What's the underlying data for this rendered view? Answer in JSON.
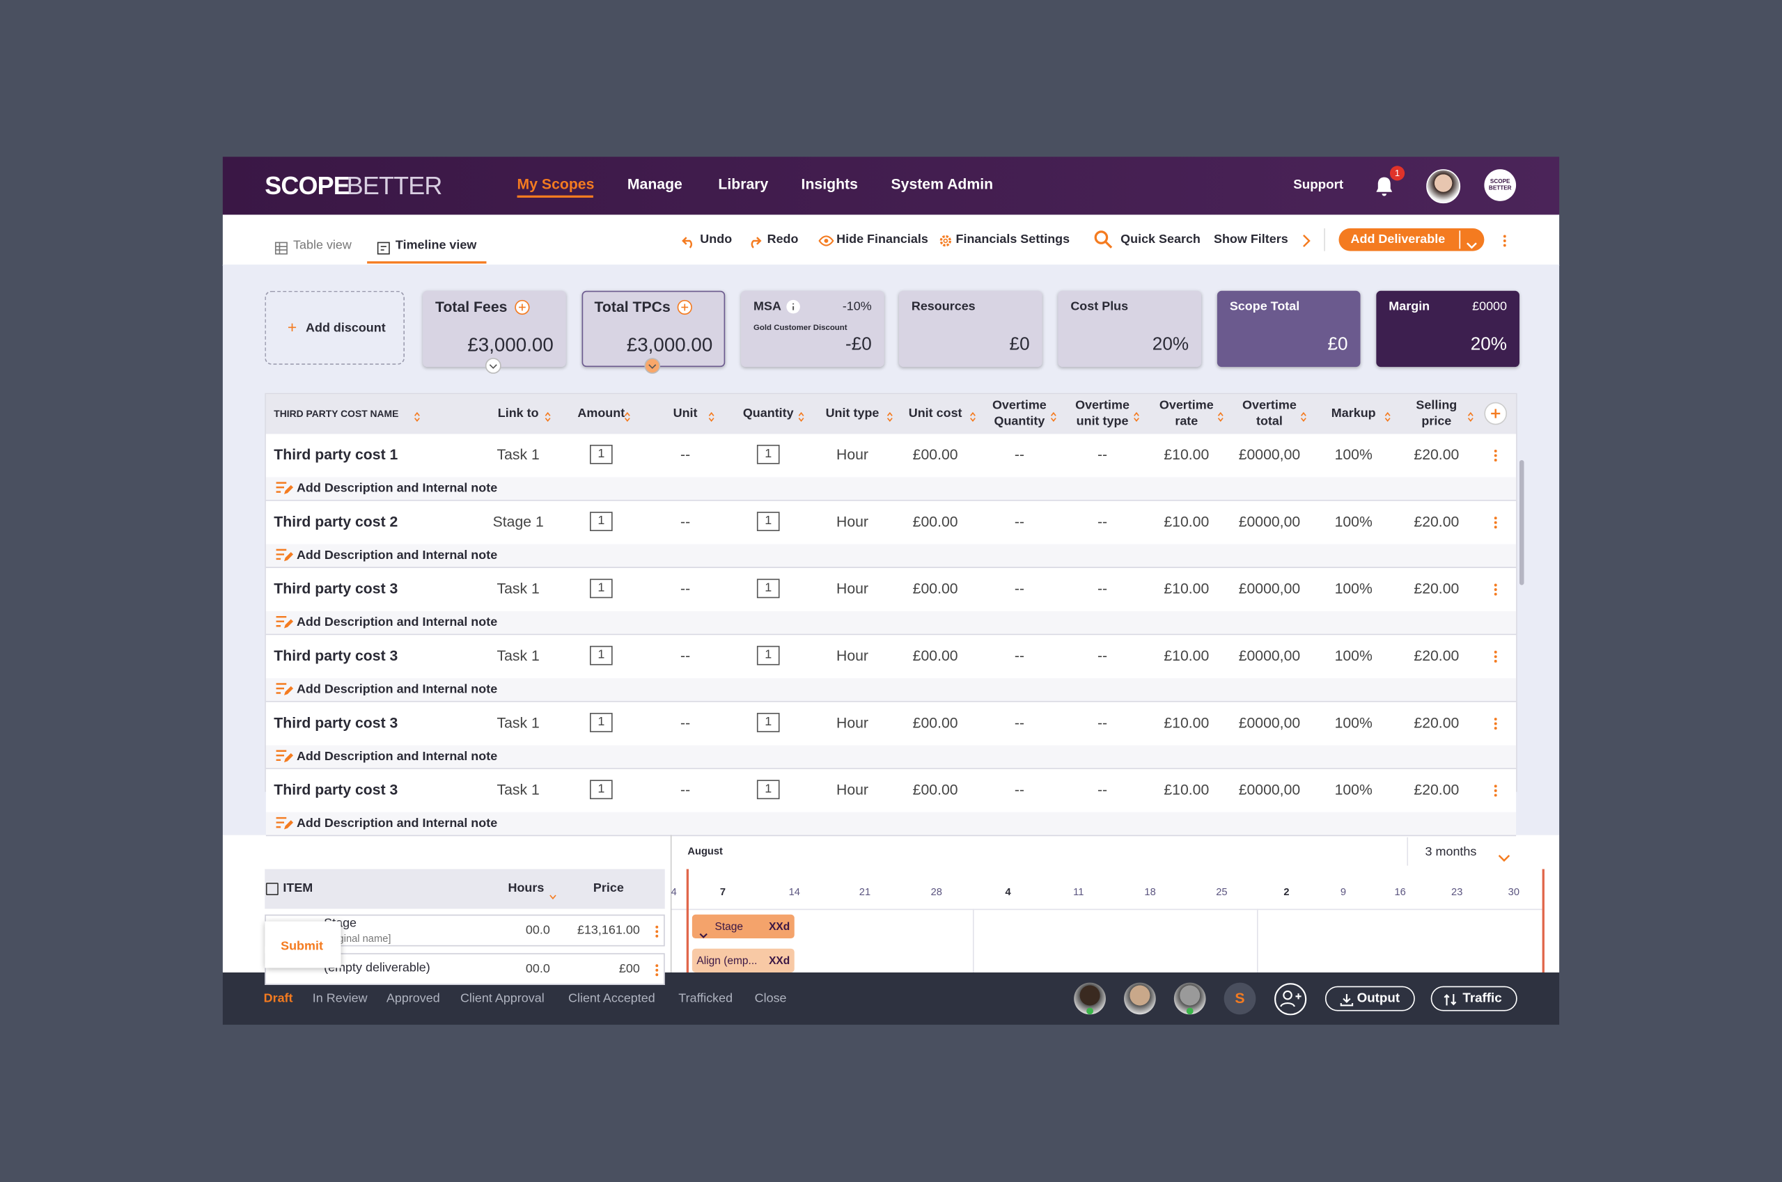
{
  "brand": {
    "a": "SCOPE",
    "b": "BETTER"
  },
  "nav": [
    "My Scopes",
    "Manage",
    "Library",
    "Insights",
    "System Admin"
  ],
  "support": "Support",
  "notifications": "1",
  "logo_small": "SCOPE BETTER",
  "views": [
    "Table view",
    "Timeline view"
  ],
  "toolbar": [
    "Undo",
    "Redo",
    "Hide Financials",
    "Financials Settings",
    "Quick Search",
    "Show Filters"
  ],
  "add_button": "Add Deliverable",
  "add_discount": "Add discount",
  "cards": [
    {
      "title": "Total Fees",
      "value": "£3,000.00"
    },
    {
      "title": "Total TPCs",
      "value": "£3,000.00"
    },
    {
      "title": "MSA",
      "extra": "-10%",
      "sub": "Gold Customer Discount",
      "value": "-£0"
    },
    {
      "title": "Resources",
      "value": "£0"
    },
    {
      "title": "Cost Plus",
      "value": "20%"
    },
    {
      "title": "Scope Total",
      "value": "£0"
    },
    {
      "title": "Margin",
      "extra": "£0000",
      "value": "20%"
    }
  ],
  "table": {
    "headers": [
      "THIRD PARTY COST NAME",
      "Link to",
      "Amount",
      "Unit",
      "Quantity",
      "Unit type",
      "Unit cost",
      "Overtime Quantity",
      "Overtime unit type",
      "Overtime rate",
      "Overtime total",
      "Markup",
      "Selling price"
    ],
    "note": "Add Description and Internal note",
    "rows": [
      [
        "Third party cost 1",
        "Task 1",
        "1",
        "--",
        "1",
        "Hour",
        "£00.00",
        "--",
        "--",
        "£10.00",
        "£0000,00",
        "100%",
        "£20.00"
      ],
      [
        "Third party cost 2",
        "Stage 1",
        "1",
        "--",
        "1",
        "Hour",
        "£00.00",
        "--",
        "--",
        "£10.00",
        "£0000,00",
        "100%",
        "£20.00"
      ],
      [
        "Third party cost 3",
        "Task 1",
        "1",
        "--",
        "1",
        "Hour",
        "£00.00",
        "--",
        "--",
        "£10.00",
        "£0000,00",
        "100%",
        "£20.00"
      ],
      [
        "Third party cost 3",
        "Task 1",
        "1",
        "--",
        "1",
        "Hour",
        "£00.00",
        "--",
        "--",
        "£10.00",
        "£0000,00",
        "100%",
        "£20.00"
      ],
      [
        "Third party cost 3",
        "Task 1",
        "1",
        "--",
        "1",
        "Hour",
        "£00.00",
        "--",
        "--",
        "£10.00",
        "£0000,00",
        "100%",
        "£20.00"
      ],
      [
        "Third party cost 3",
        "Task 1",
        "1",
        "--",
        "1",
        "Hour",
        "£00.00",
        "--",
        "--",
        "£10.00",
        "£0000,00",
        "100%",
        "£20.00"
      ]
    ]
  },
  "timeline": {
    "headers": [
      "ITEM",
      "Hours",
      "Price"
    ],
    "rows": [
      {
        "name": "Stage",
        "sub": "[original name]",
        "hours": "00.0",
        "price": "£13,161.00"
      },
      {
        "name": "(empty deliverable)",
        "hours": "00.0",
        "price": "£00"
      }
    ],
    "submit": "Submit",
    "month": "August",
    "range": "3 months",
    "days": [
      "4",
      "7",
      "14",
      "21",
      "28",
      "4",
      "11",
      "18",
      "25",
      "2",
      "9",
      "16",
      "23",
      "30"
    ],
    "bars": [
      {
        "label": "Stage",
        "duration": "XXd"
      },
      {
        "label": "Align (emp...",
        "duration": "XXd"
      }
    ]
  },
  "footer": {
    "statuses": [
      "Draft",
      "In Review",
      "Approved",
      "Client Approval",
      "Client Accepted",
      "Trafficked",
      "Close"
    ],
    "avatar_initial": "S",
    "buttons": [
      "Output",
      "Traffic"
    ]
  }
}
